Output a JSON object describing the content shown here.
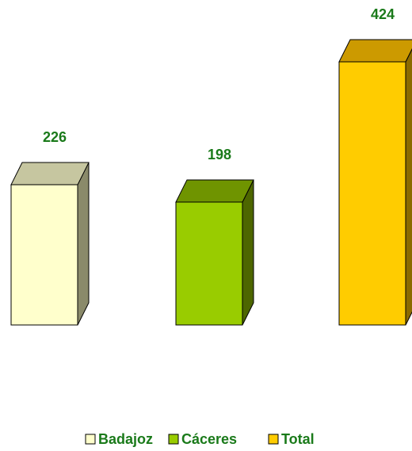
{
  "chart_data": {
    "type": "bar",
    "categories": [
      "Badajoz",
      "Cáceres",
      "Total"
    ],
    "values": [
      226,
      198,
      424
    ],
    "data_labels": [
      "226",
      "198",
      "424"
    ],
    "ylim": [
      0,
      424
    ],
    "grid": false,
    "legend_position": "bottom",
    "label_color": "#1a7a1a",
    "series_colors": {
      "Badajoz": {
        "front": "#ffffcc",
        "top": "#c6c6a0",
        "side": "#8a8a6a"
      },
      "Cáceres": {
        "front": "#99cc00",
        "top": "#6f9400",
        "side": "#4d6600"
      },
      "Total": {
        "front": "#ffcc00",
        "top": "#cc9a00",
        "side": "#8a6a00"
      }
    }
  },
  "legend": {
    "items": [
      "Badajoz",
      "Cáceres",
      "Total"
    ]
  }
}
